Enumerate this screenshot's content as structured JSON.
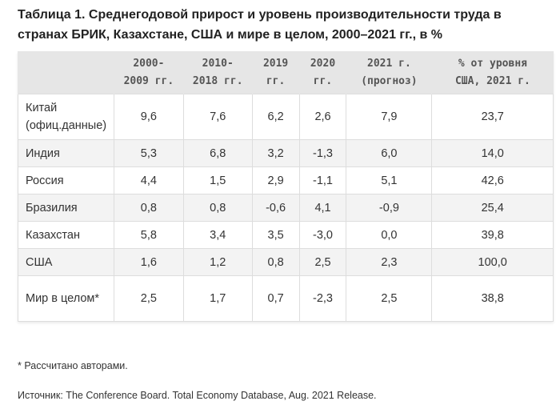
{
  "title": "Таблица 1. Среднегодовой прирост и уровень производительности труда в странах БРИК, Казахстане, США и мире в целом, 2000–2021 гг., в %",
  "columns": [
    "",
    "2000-\n2009 гг.",
    "2010-\n2018 гг.",
    "2019\nгг.",
    "2020\nгг.",
    "2021 г.\n(прогноз)",
    "% от уровня\nСША, 2021 г."
  ],
  "rows": [
    {
      "name": "Китай (офиц.данные)",
      "values": [
        "9,6",
        "7,6",
        "6,2",
        "2,6",
        "7,9",
        "23,7"
      ]
    },
    {
      "name": "Индия",
      "values": [
        "5,3",
        "6,8",
        "3,2",
        "-1,3",
        "6,0",
        "14,0"
      ]
    },
    {
      "name": "Россия",
      "values": [
        "4,4",
        "1,5",
        "2,9",
        "-1,1",
        "5,1",
        "42,6"
      ]
    },
    {
      "name": "Бразилия",
      "values": [
        "0,8",
        "0,8",
        "-0,6",
        "4,1",
        "-0,9",
        "25,4"
      ]
    },
    {
      "name": "Казахстан",
      "values": [
        "5,8",
        "3,4",
        "3,5",
        "-3,0",
        "0,0",
        "39,8"
      ]
    },
    {
      "name": "США",
      "values": [
        "1,6",
        "1,2",
        "0,8",
        "2,5",
        "2,3",
        "100,0"
      ]
    },
    {
      "name": "Мир в целом*",
      "values": [
        "2,5",
        "1,7",
        "0,7",
        "-2,3",
        "2,5",
        "38,8"
      ]
    }
  ],
  "footnote": "* Рассчитано авторами.",
  "source": "Источник: The Conference Board. Total Economy Database, Aug. 2021 Release."
}
